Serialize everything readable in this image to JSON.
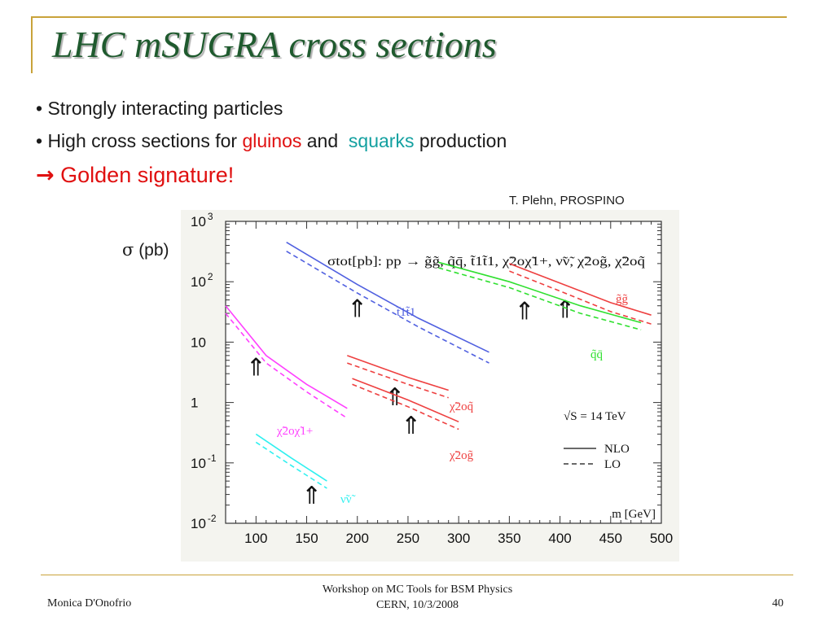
{
  "slide": {
    "title": "LHC mSUGRA cross sections",
    "bullet1": "• Strongly interacting particles",
    "bullet2_pre": "• High cross sections for ",
    "bullet2_gluinos": "gluinos",
    "bullet2_mid": " and  ",
    "bullet2_squarks": "squarks",
    "bullet2_post": " production",
    "golden": "Golden signature!",
    "credit": "T. Plehn, PROSPINO",
    "sigma_symbol": "σ",
    "sigma_unit": "(pb)"
  },
  "footer": {
    "author": "Monica D'Onofrio",
    "event_line1": "Workshop on MC Tools for BSM Physics",
    "event_line2": "CERN, 10/3/2008",
    "page": "40"
  },
  "colors": {
    "title": "#1f5a2e",
    "accent_red": "#e01010",
    "accent_teal": "#13a0a0",
    "frame": "#c9a33a"
  },
  "chart_data": {
    "type": "line",
    "yscale": "log",
    "xlabel": "m [GeV]",
    "ylabel": "σ (pb)",
    "xlim": [
      70,
      500
    ],
    "ylim": [
      0.01,
      1000
    ],
    "xticks": [
      "100",
      "150",
      "200",
      "250",
      "300",
      "350",
      "400",
      "450",
      "500"
    ],
    "yticks": [
      "10-2",
      "10-1",
      "1",
      "10",
      "10 2",
      "10 3"
    ],
    "process_label": "σtot[pb]: pp → g̃g̃, q̃q̄, t̃1t̃1, χ̃2oχ̃1+, ν̃ν̃, χ̃2og̃, χ̃2oq̃",
    "energy_label": "√S = 14 TeV",
    "legend": [
      {
        "label": "NLO",
        "style": "solid"
      },
      {
        "label": "LO",
        "style": "dashed"
      }
    ],
    "series": [
      {
        "name": "t̃1t̃1",
        "color": "#5060e0",
        "nlo": [
          [
            130,
            450
          ],
          [
            200,
            90
          ],
          [
            260,
            25
          ],
          [
            330,
            6.8
          ]
        ],
        "lo": [
          [
            130,
            320
          ],
          [
            200,
            65
          ],
          [
            260,
            18
          ],
          [
            330,
            4.5
          ]
        ],
        "arrow_x": 200
      },
      {
        "name": "g̃g̃",
        "color": "#ee4040",
        "nlo": [
          [
            350,
            200
          ],
          [
            400,
            95
          ],
          [
            450,
            45
          ],
          [
            490,
            28
          ]
        ],
        "lo": [
          [
            350,
            150
          ],
          [
            400,
            70
          ],
          [
            450,
            32
          ],
          [
            490,
            20
          ]
        ],
        "arrow_x": 405
      },
      {
        "name": "q̃q̄",
        "color": "#30e030",
        "nlo": [
          [
            280,
            210
          ],
          [
            350,
            100
          ],
          [
            420,
            40
          ],
          [
            480,
            21
          ]
        ],
        "lo": [
          [
            280,
            170
          ],
          [
            350,
            80
          ],
          [
            420,
            30
          ],
          [
            480,
            16
          ]
        ],
        "arrow_x": 365
      },
      {
        "name": "χ̃2oχ̃1+",
        "color": "#ff40ff",
        "nlo": [
          [
            70,
            40
          ],
          [
            110,
            6
          ],
          [
            150,
            2
          ],
          [
            190,
            0.8
          ]
        ],
        "lo": [
          [
            70,
            30
          ],
          [
            110,
            4.5
          ],
          [
            150,
            1.5
          ],
          [
            190,
            0.55
          ]
        ],
        "arrow_x": 100
      },
      {
        "name": "χ̃2oq̃",
        "color": "#ee4040",
        "nlo": [
          [
            190,
            6
          ],
          [
            250,
            2.6
          ],
          [
            290,
            1.6
          ]
        ],
        "lo": [
          [
            190,
            4.5
          ],
          [
            250,
            2
          ],
          [
            290,
            1.2
          ]
        ],
        "arrow_x": 237
      },
      {
        "name": "χ̃2og̃",
        "color": "#ee4040",
        "nlo": [
          [
            195,
            2.5
          ],
          [
            250,
            1.1
          ],
          [
            300,
            0.48
          ]
        ],
        "lo": [
          [
            195,
            2
          ],
          [
            250,
            0.85
          ],
          [
            300,
            0.36
          ]
        ],
        "arrow_x": 253
      },
      {
        "name": "ν̃ν̃",
        "color": "#30f0f0",
        "nlo": [
          [
            100,
            0.3
          ],
          [
            135,
            0.12
          ],
          [
            170,
            0.05
          ]
        ],
        "lo": [
          [
            100,
            0.22
          ],
          [
            135,
            0.09
          ],
          [
            170,
            0.038
          ]
        ],
        "arrow_x": 155
      }
    ]
  }
}
